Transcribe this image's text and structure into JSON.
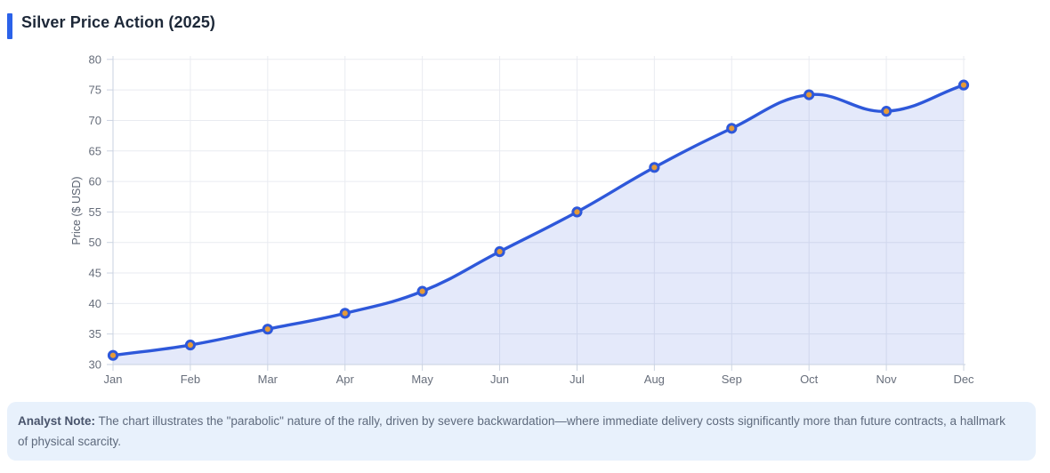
{
  "header": {
    "title": "Silver Price Action (2025)",
    "accent_color": "#2b62e9"
  },
  "chart_data": {
    "type": "line",
    "categories": [
      "Jan",
      "Feb",
      "Mar",
      "Apr",
      "May",
      "Jun",
      "Jul",
      "Aug",
      "Sep",
      "Oct",
      "Nov",
      "Dec"
    ],
    "values": [
      31.5,
      33.2,
      35.8,
      38.4,
      42.0,
      48.5,
      55.0,
      62.3,
      68.7,
      74.2,
      71.5,
      75.8
    ],
    "title": "",
    "xlabel": "",
    "ylabel": "Price ($ USD)",
    "ylim": [
      30,
      80
    ],
    "ytick_step": 5,
    "yticks": [
      30,
      35,
      40,
      45,
      50,
      55,
      60,
      65,
      70,
      75,
      80
    ],
    "grid": true,
    "legend": false,
    "smooth": true,
    "line_color": "#2e58da",
    "fill_color": "rgba(46,88,218,0.13)",
    "point_fill": "#e59a38",
    "point_border": "#2e58da",
    "grid_color": "#e9ebf1",
    "axis_color": "#c9d2e0",
    "tick_label_color": "#676e7b"
  },
  "note": {
    "label": "Analyst Note:",
    "text": "The chart illustrates the \"parabolic\" nature of the rally, driven by severe backwardation—where immediate delivery costs significantly more than future contracts, a hallmark of physical scarcity."
  }
}
